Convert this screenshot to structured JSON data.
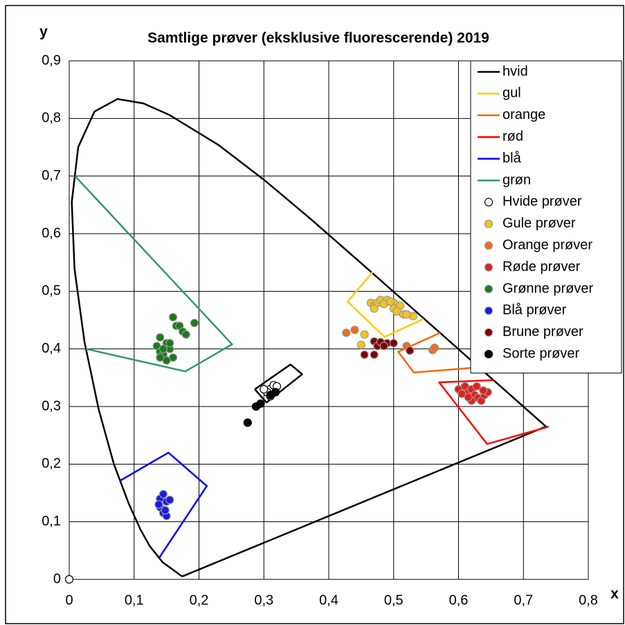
{
  "chart_data": {
    "type": "scatter",
    "title": "Samtlige prøver (eksklusive fluorescerende) 2019",
    "xlabel": "x",
    "ylabel": "y",
    "xlim": [
      0,
      0.8
    ],
    "ylim": [
      0,
      0.9
    ],
    "xticks": [
      0,
      {
        "value": 0.1,
        "label": "0,1"
      },
      {
        "value": 0.2,
        "label": "0,2"
      },
      {
        "value": 0.3,
        "label": "0,3"
      },
      {
        "value": 0.4,
        "label": "0,4"
      },
      {
        "value": 0.5,
        "label": "0,5"
      },
      {
        "value": 0.6,
        "label": "0,6"
      },
      {
        "value": 0.7,
        "label": "0,7"
      },
      {
        "value": 0.8,
        "label": "0,8"
      }
    ],
    "yticks": [
      0,
      {
        "value": 0.1,
        "label": "0,1"
      },
      {
        "value": 0.2,
        "label": "0,2"
      },
      {
        "value": 0.3,
        "label": "0,3"
      },
      {
        "value": 0.4,
        "label": "0,4"
      },
      {
        "value": 0.5,
        "label": "0,5"
      },
      {
        "value": 0.6,
        "label": "0,6"
      },
      {
        "value": 0.7,
        "label": "0,7"
      },
      {
        "value": 0.8,
        "label": "0,8"
      },
      {
        "value": 0.9,
        "label": "0,9"
      }
    ],
    "grid": true,
    "legend": "upper right",
    "series": [
      {
        "name": "hvid",
        "mode": "lines",
        "color": "#000000",
        "x": [
          0.1741,
          0.144,
          0.1241,
          0.1096,
          0.0913,
          0.0687,
          0.0454,
          0.0235,
          0.0082,
          0.0039,
          0.0139,
          0.0389,
          0.0743,
          0.1142,
          0.1547,
          0.2296,
          0.3016,
          0.3731,
          0.4441,
          0.5125,
          0.5752,
          0.627,
          0.6915,
          0.726,
          0.7347,
          0.1741,
          null,
          0.286,
          0.341,
          0.359,
          0.304,
          0.286
        ],
        "y": [
          0.005,
          0.0297,
          0.0578,
          0.0868,
          0.1327,
          0.2007,
          0.295,
          0.4127,
          0.5384,
          0.6548,
          0.7502,
          0.812,
          0.8338,
          0.8262,
          0.8059,
          0.7543,
          0.6923,
          0.6245,
          0.5547,
          0.4866,
          0.4242,
          0.3725,
          0.3083,
          0.274,
          0.2653,
          0.005,
          null,
          0.33,
          0.373,
          0.356,
          0.307,
          0.33
        ]
      },
      {
        "name": "gul",
        "mode": "lines",
        "color": "#ffcc00",
        "x": [
          0.468,
          0.429,
          0.486,
          0.546
        ],
        "y": [
          0.534,
          0.482,
          0.421,
          0.452
        ]
      },
      {
        "name": "orange",
        "mode": "lines",
        "color": "#ff6600",
        "x": [
          0.572,
          0.507,
          0.531,
          0.631
        ],
        "y": [
          0.428,
          0.395,
          0.359,
          0.368
        ]
      },
      {
        "name": "rød",
        "mode": "lines",
        "color": "#ff0000",
        "x": [
          0.655,
          0.57,
          0.644,
          0.739
        ],
        "y": [
          0.346,
          0.342,
          0.235,
          0.265
        ]
      },
      {
        "name": "blå",
        "mode": "lines",
        "color": "#0000ff",
        "x": [
          0.078,
          0.153,
          0.212,
          0.139
        ],
        "y": [
          0.171,
          0.22,
          0.162,
          0.038
        ]
      },
      {
        "name": "grøn",
        "mode": "lines",
        "color": "#339966",
        "x": [
          0.009,
          0.251,
          0.179,
          0.026
        ],
        "y": [
          0.7,
          0.408,
          0.361,
          0.4
        ]
      },
      {
        "name": "Hvide prøver",
        "mode": "markers",
        "color": "#ffffff",
        "edgecolor": "#000000",
        "x": [
          0.31,
          0.315,
          0.305,
          0.31,
          0.3,
          0.32,
          0
        ],
        "y": [
          0.33,
          0.337,
          0.325,
          0.318,
          0.33,
          0.335,
          0
        ]
      },
      {
        "name": "Gule prøver",
        "mode": "markers",
        "color": "#f2c41c",
        "edgecolor": "#999999",
        "x": [
          0.465,
          0.47,
          0.475,
          0.48,
          0.49,
          0.5,
          0.5,
          0.51,
          0.505,
          0.515,
          0.53,
          0.52,
          0.47,
          0.485,
          0.455,
          0.45,
          0.495
        ],
        "y": [
          0.48,
          0.475,
          0.48,
          0.485,
          0.485,
          0.48,
          0.47,
          0.475,
          0.465,
          0.46,
          0.457,
          0.46,
          0.47,
          0.478,
          0.425,
          0.407,
          0.482
        ]
      },
      {
        "name": "Orange prøver",
        "mode": "markers",
        "color": "#f26b1d",
        "edgecolor": "#999999",
        "x": [
          0.427,
          0.44,
          0.56,
          0.563,
          0.52
        ],
        "y": [
          0.428,
          0.433,
          0.398,
          0.402,
          0.405
        ]
      },
      {
        "name": "Røde prøver",
        "mode": "markers",
        "color": "#e41e1e",
        "edgecolor": "#999999",
        "x": [
          0.6,
          0.61,
          0.615,
          0.62,
          0.625,
          0.63,
          0.635,
          0.64,
          0.645,
          0.62,
          0.605,
          0.628,
          0.638,
          0.615
        ],
        "y": [
          0.33,
          0.335,
          0.325,
          0.33,
          0.32,
          0.315,
          0.31,
          0.32,
          0.325,
          0.31,
          0.322,
          0.335,
          0.328,
          0.316
        ]
      },
      {
        "name": "Grønne prøver",
        "mode": "markers",
        "color": "#1a7a1a",
        "edgecolor": "#999999",
        "x": [
          0.16,
          0.165,
          0.17,
          0.175,
          0.18,
          0.193,
          0.14,
          0.135,
          0.14,
          0.145,
          0.15,
          0.155,
          0.16,
          0.145,
          0.15,
          0.155,
          0.14
        ],
        "y": [
          0.455,
          0.44,
          0.44,
          0.43,
          0.425,
          0.445,
          0.42,
          0.405,
          0.395,
          0.39,
          0.41,
          0.4,
          0.385,
          0.4,
          0.38,
          0.41,
          0.385
        ]
      },
      {
        "name": "Blå prøver",
        "mode": "markers",
        "color": "#1a1ae6",
        "edgecolor": "#999999",
        "x": [
          0.14,
          0.145,
          0.15,
          0.14,
          0.145,
          0.15,
          0.155,
          0.148,
          0.138
        ],
        "y": [
          0.14,
          0.148,
          0.135,
          0.125,
          0.115,
          0.11,
          0.138,
          0.12,
          0.13
        ]
      },
      {
        "name": "Brune prøver",
        "mode": "markers",
        "color": "#800000",
        "edgecolor": "#999999",
        "x": [
          0.47,
          0.475,
          0.49,
          0.5,
          0.48,
          0.455,
          0.47,
          0.525,
          0.485
        ],
        "y": [
          0.413,
          0.405,
          0.41,
          0.41,
          0.412,
          0.39,
          0.39,
          0.397,
          0.405
        ]
      },
      {
        "name": "Sorte prøver",
        "mode": "markers",
        "color": "#000000",
        "edgecolor": "#000000",
        "x": [
          0.275,
          0.288,
          0.295,
          0.318,
          0.31
        ],
        "y": [
          0.272,
          0.3,
          0.305,
          0.325,
          0.32
        ]
      }
    ]
  }
}
